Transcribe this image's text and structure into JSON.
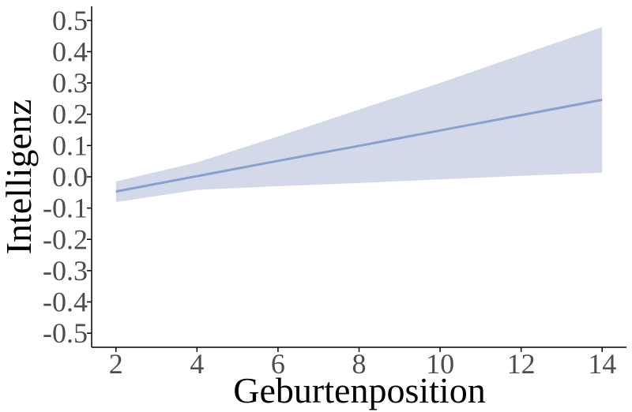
{
  "chart_data": {
    "type": "line",
    "title": "",
    "xlabel": "Geburtenposition",
    "ylabel": "Intelligenz",
    "xlim": [
      1.4,
      14.6
    ],
    "ylim": [
      -0.545,
      0.545
    ],
    "x_ticks": [
      {
        "value": 2,
        "label": "2"
      },
      {
        "value": 4,
        "label": "4"
      },
      {
        "value": 6,
        "label": "6"
      },
      {
        "value": 8,
        "label": "8"
      },
      {
        "value": 10,
        "label": "10"
      },
      {
        "value": 12,
        "label": "12"
      },
      {
        "value": 14,
        "label": "14"
      }
    ],
    "y_ticks": [
      {
        "value": 0.5,
        "label": "0.5"
      },
      {
        "value": 0.4,
        "label": "0.4"
      },
      {
        "value": 0.3,
        "label": "0.3"
      },
      {
        "value": 0.2,
        "label": "0.2"
      },
      {
        "value": 0.1,
        "label": "0.1"
      },
      {
        "value": 0.0,
        "label": "0.0"
      },
      {
        "value": -0.1,
        "label": "-0.1"
      },
      {
        "value": -0.2,
        "label": "-0.2"
      },
      {
        "value": -0.3,
        "label": "-0.3"
      },
      {
        "value": -0.4,
        "label": "-0.4"
      },
      {
        "value": -0.5,
        "label": "-0.5"
      }
    ],
    "grid": false,
    "series": [
      {
        "x": [
          2,
          4,
          6,
          8,
          10,
          12,
          14
        ],
        "values": [
          -0.047,
          0.002,
          0.051,
          0.099,
          0.148,
          0.197,
          0.246
        ],
        "lower": [
          -0.081,
          -0.042,
          -0.03,
          -0.02,
          -0.008,
          0.003,
          0.013
        ],
        "upper": [
          -0.015,
          0.046,
          0.129,
          0.215,
          0.3,
          0.39,
          0.479
        ]
      }
    ],
    "colors": {
      "line": "#8a9fcf",
      "band": "#d3d9e8",
      "axis": "#000000",
      "tick_text": "#4d4d4d"
    }
  }
}
